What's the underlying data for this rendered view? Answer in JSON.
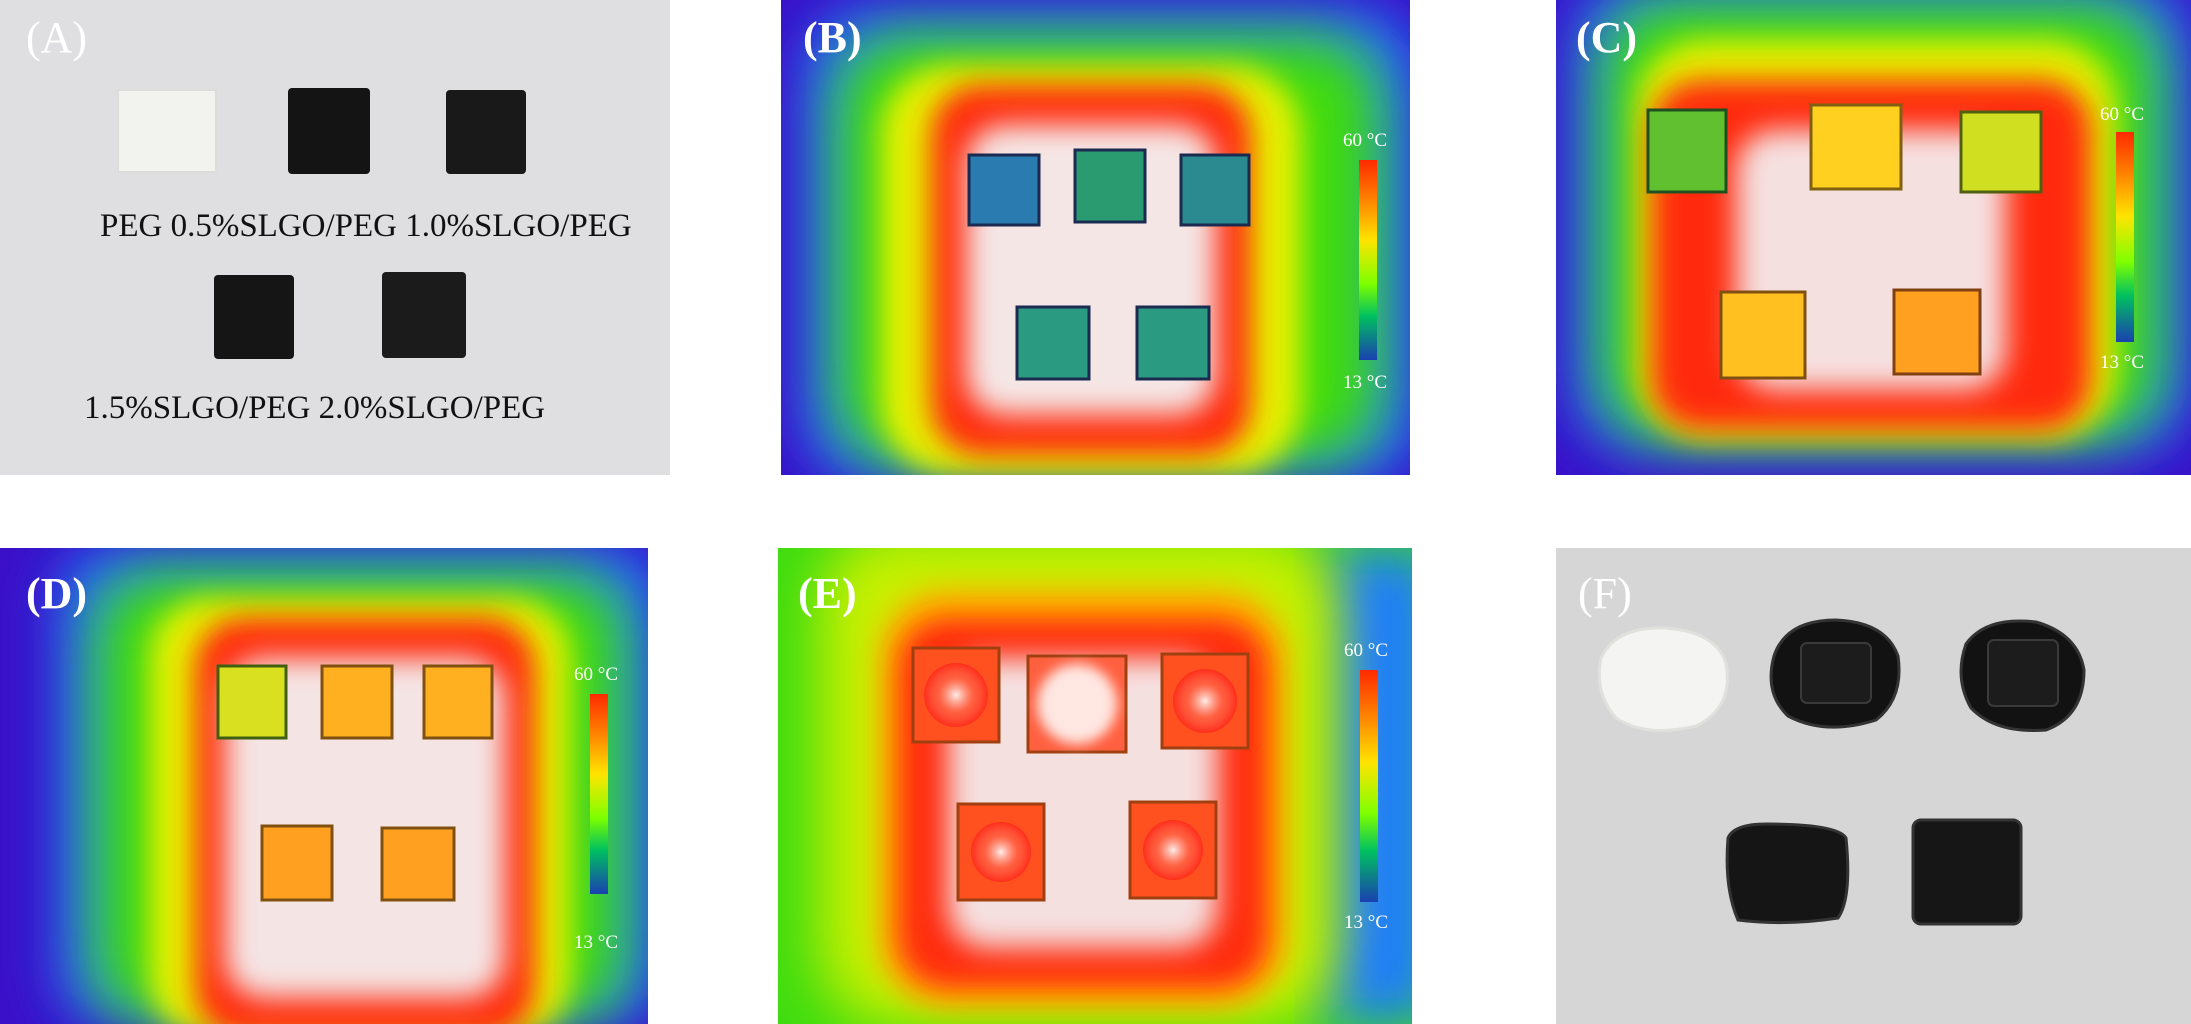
{
  "panels": {
    "a": {
      "label": "(A)",
      "captions": [
        "PEG 0.5%SLGO/PEG 1.0%SLGO/PEG",
        "1.5%SLGO/PEG  2.0%SLGO/PEG"
      ]
    },
    "b": {
      "label": "(B)",
      "scale_max": "60 °C",
      "scale_min": "13 °C"
    },
    "c": {
      "label": "(C)",
      "scale_max": "60 °C",
      "scale_min": "13 °C"
    },
    "d": {
      "label": "(D)",
      "scale_max": "60 °C",
      "scale_min": "13 °C"
    },
    "e": {
      "label": "(E)",
      "scale_max": "60 °C",
      "scale_min": "13 °C"
    },
    "f": {
      "label": "(F)"
    }
  },
  "colors": {
    "hot": "#ff2a00",
    "warm": "#ffe400",
    "mid": "#37e000",
    "cool": "#1fa0ff",
    "cold": "#3a10c8",
    "core": "#f4e8e8"
  }
}
